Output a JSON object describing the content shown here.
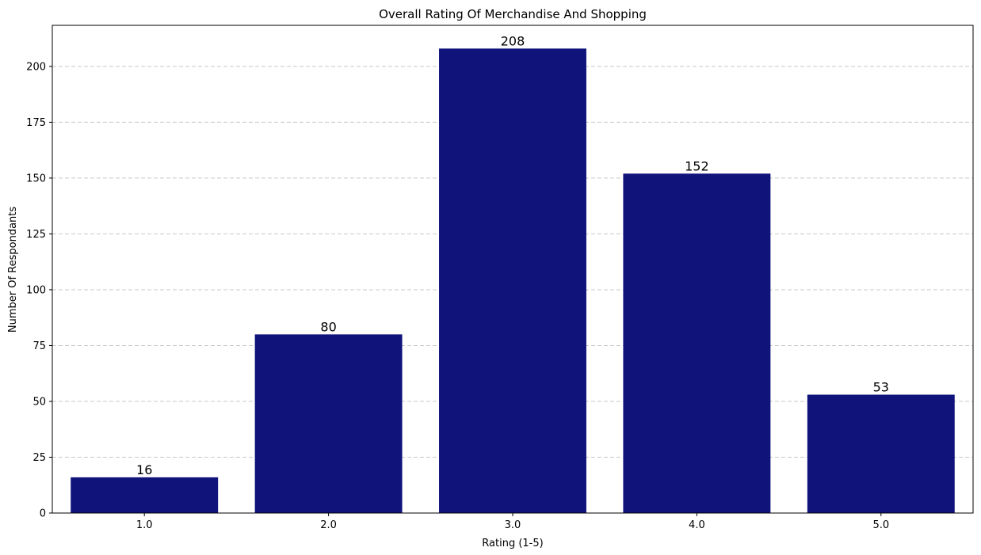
{
  "chart_data": {
    "type": "bar",
    "title": "Overall Rating Of Merchandise And Shopping",
    "xlabel": "Rating (1-5)",
    "ylabel": "Number Of Respondants",
    "categories": [
      "1.0",
      "2.0",
      "3.0",
      "4.0",
      "5.0"
    ],
    "values": [
      16,
      80,
      208,
      152,
      53
    ],
    "ylim": [
      0,
      218.4
    ],
    "yticks": [
      0,
      25,
      50,
      75,
      100,
      125,
      150,
      175,
      200
    ],
    "grid": "y-dashed",
    "bar_color": "#10137a",
    "show_value_labels": true
  }
}
